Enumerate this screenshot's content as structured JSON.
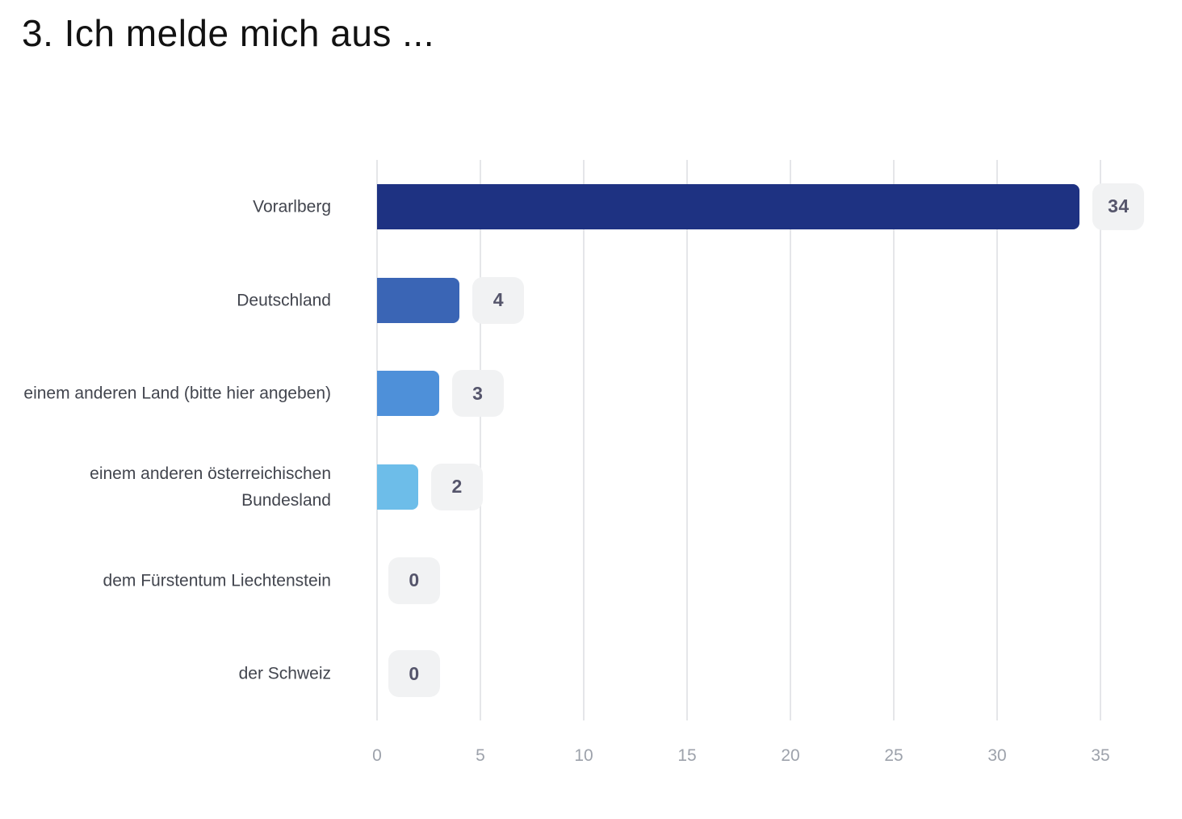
{
  "title": "3. Ich melde mich aus ...",
  "colors": {
    "grid": "#e5e6e9",
    "pill_background": "#f1f2f3",
    "pill_text": "#55556b",
    "category_text": "#42454e",
    "tick_text": "#9da2ab"
  },
  "chart_data": {
    "type": "bar",
    "orientation": "horizontal",
    "title": "3. Ich melde mich aus ...",
    "categories": [
      "Vorarlberg",
      "Deutschland",
      "einem anderen Land (bitte hier angeben)",
      "einem anderen österreichischen Bundesland",
      "dem Fürstentum Liechtenstein",
      "der Schweiz"
    ],
    "values": [
      34,
      4,
      3,
      2,
      0,
      0
    ],
    "value_labels": [
      "34",
      "4",
      "3",
      "2",
      "0",
      "0"
    ],
    "bar_colors": [
      "#1e3282",
      "#3a65b5",
      "#4e90d9",
      "#6dbde9",
      null,
      null
    ],
    "xlim": [
      0,
      35
    ],
    "x_ticks": [
      0,
      5,
      10,
      15,
      20,
      25,
      30,
      35
    ],
    "x_tick_labels": [
      "0",
      "5",
      "10",
      "15",
      "20",
      "25",
      "30",
      "35"
    ],
    "grid": true,
    "legend": false,
    "xlabel": "",
    "ylabel": ""
  }
}
